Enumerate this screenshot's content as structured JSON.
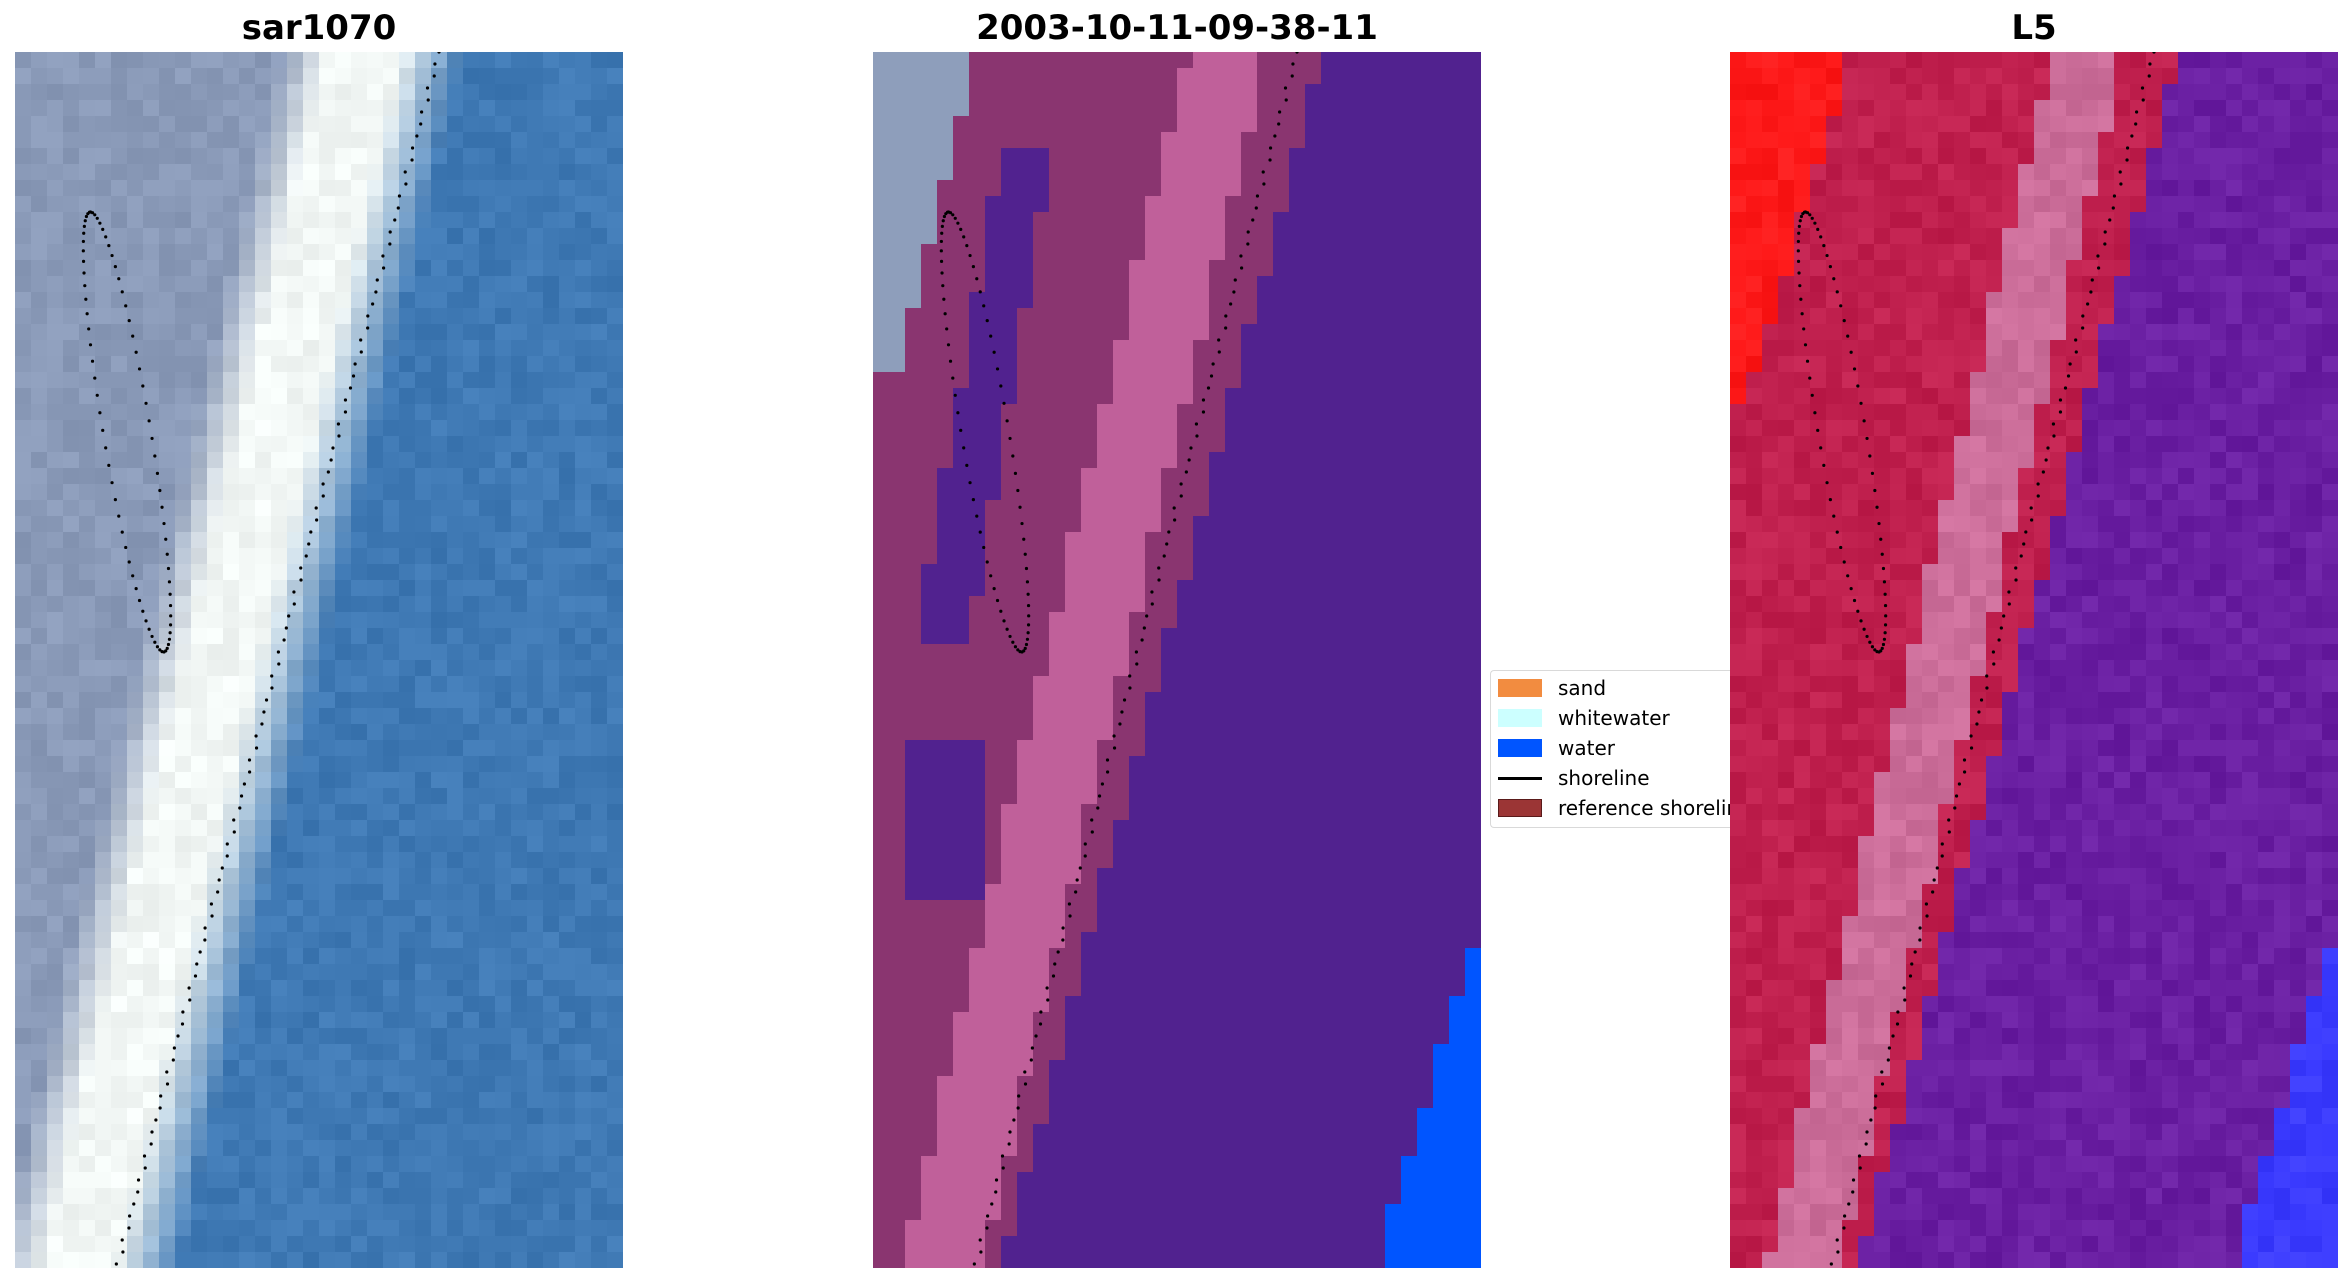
{
  "panels": [
    {
      "title": "sar1070",
      "kind": "rgb"
    },
    {
      "title": "2003-10-11-09-38-11",
      "kind": "classified"
    },
    {
      "title": "L5",
      "kind": "index"
    }
  ],
  "legend": {
    "items": [
      {
        "label": "sand",
        "color": "#f28c40",
        "type": "patch"
      },
      {
        "label": "whitewater",
        "color": "#ccffff",
        "type": "patch"
      },
      {
        "label": "water",
        "color": "#0055ff",
        "type": "patch"
      },
      {
        "label": "shoreline",
        "color": "#000000",
        "type": "line"
      },
      {
        "label": "reference shoreline",
        "color": "#9b3535",
        "type": "patch"
      }
    ]
  },
  "colors": {
    "sar_water": "#3f79b4",
    "sar_surf": "#f2f7f5",
    "sar_land": "#8a9ab8",
    "class_water": "#51228f",
    "class_land": "#8a3570",
    "class_surf": "#c0609a",
    "class_sand_grey": "#8e9ebb",
    "class_blue": "#0055ff",
    "l5_red": "#ff1a1a",
    "l5_crimson": "#c0204e",
    "l5_pink": "#cc6e9a",
    "l5_purple": "#6a1fa2",
    "l5_blue": "#3b3bff"
  }
}
